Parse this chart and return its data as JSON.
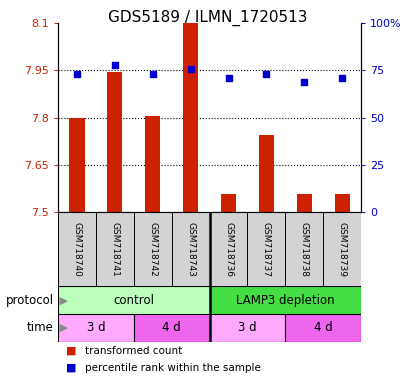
{
  "title": "GDS5189 / ILMN_1720513",
  "samples": [
    "GSM718740",
    "GSM718741",
    "GSM718742",
    "GSM718743",
    "GSM718736",
    "GSM718737",
    "GSM718738",
    "GSM718739"
  ],
  "bar_values": [
    7.8,
    7.945,
    7.805,
    8.1,
    7.555,
    7.745,
    7.555,
    7.555
  ],
  "dot_values": [
    73,
    78,
    73,
    76,
    71,
    73,
    69,
    71
  ],
  "ylim_left": [
    7.5,
    8.1
  ],
  "ylim_right": [
    0,
    100
  ],
  "yticks_left": [
    7.5,
    7.65,
    7.8,
    7.95,
    8.1
  ],
  "ytick_labels_left": [
    "7.5",
    "7.65",
    "7.8",
    "7.95",
    "8.1"
  ],
  "yticks_right": [
    0,
    25,
    50,
    75,
    100
  ],
  "ytick_labels_right": [
    "0",
    "25",
    "50",
    "75",
    "100%"
  ],
  "bar_color": "#cc2200",
  "dot_color": "#0000cc",
  "bar_bottom": 7.5,
  "protocol_groups": [
    {
      "label": "control",
      "start": 0,
      "end": 4,
      "color": "#bbffbb"
    },
    {
      "label": "LAMP3 depletion",
      "start": 4,
      "end": 8,
      "color": "#44dd44"
    }
  ],
  "time_groups": [
    {
      "label": "3 d",
      "start": 0,
      "end": 2,
      "color": "#ffaaff"
    },
    {
      "label": "4 d",
      "start": 2,
      "end": 4,
      "color": "#ee66ee"
    },
    {
      "label": "3 d",
      "start": 4,
      "end": 6,
      "color": "#ffaaff"
    },
    {
      "label": "4 d",
      "start": 6,
      "end": 8,
      "color": "#ee66ee"
    }
  ],
  "legend_items": [
    {
      "label": "transformed count",
      "color": "#cc2200"
    },
    {
      "label": "percentile rank within the sample",
      "color": "#0000cc"
    }
  ],
  "protocol_label": "protocol",
  "time_label": "time",
  "bg_color": "#ffffff",
  "tick_label_color_left": "#cc2200",
  "tick_label_color_right": "#0000cc",
  "sample_bg_color": "#d3d3d3",
  "title_fontsize": 11,
  "bar_width": 0.4
}
